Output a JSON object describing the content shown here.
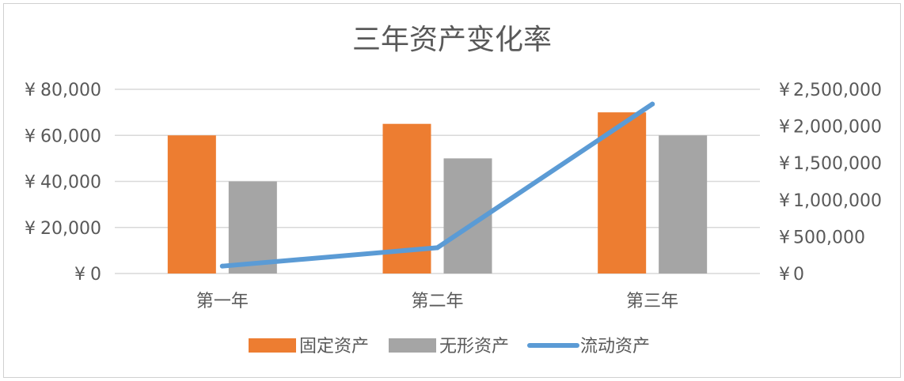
{
  "chart_data": {
    "type": "bar",
    "title": "三年资产变化率",
    "categories": [
      "第一年",
      "第二年",
      "第三年"
    ],
    "series": [
      {
        "name": "固定资产",
        "kind": "bar",
        "axis": "left",
        "values": [
          60000,
          65000,
          70000
        ]
      },
      {
        "name": "无形资产",
        "kind": "bar",
        "axis": "left",
        "values": [
          40000,
          50000,
          60000
        ]
      },
      {
        "name": "流动资产",
        "kind": "line",
        "axis": "right",
        "values": [
          100000,
          350000,
          2300000
        ]
      }
    ],
    "y_left": {
      "ylim": [
        0,
        80000
      ],
      "ticks": [
        0,
        20000,
        40000,
        60000,
        80000
      ],
      "tick_labels": [
        "¥0",
        "¥20,000",
        "¥40,000",
        "¥60,000",
        "¥80,000"
      ]
    },
    "y_right": {
      "ylim": [
        0,
        2500000
      ],
      "ticks": [
        0,
        500000,
        1000000,
        1500000,
        2000000,
        2500000
      ],
      "tick_labels": [
        "¥0",
        "¥500,000",
        "¥1,000,000",
        "¥1,500,000",
        "¥2,000,000",
        "¥2,500,000"
      ]
    },
    "grid": true,
    "legend_position": "bottom",
    "colors": {
      "固定资产": "#ED7D31",
      "无形资产": "#A5A5A5",
      "流动资产": "#5B9BD5",
      "grid": "#D9D9D9",
      "text": "#595959"
    }
  }
}
